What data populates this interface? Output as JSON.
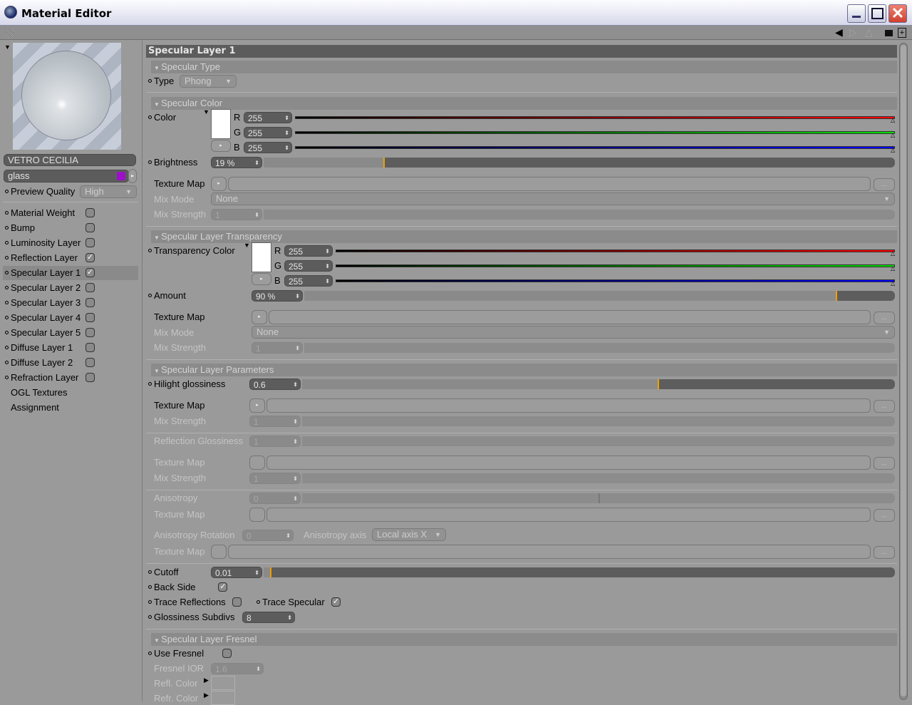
{
  "window": {
    "title": "Material Editor"
  },
  "colors": {
    "accent": "#f0a000",
    "swatch_purple": "#9b10c8",
    "red": "#ff0000",
    "green": "#00dd00",
    "blue": "#0000ff"
  },
  "left": {
    "material_name": "VETRO CECILIA",
    "material_type": "glass",
    "preview_quality_label": "Preview Quality",
    "preview_quality_value": "High",
    "layers": [
      {
        "label": "Material Weight",
        "checked": false
      },
      {
        "label": "Bump",
        "checked": false
      },
      {
        "label": "Luminosity Layer",
        "checked": false
      },
      {
        "label": "Reflection Layer",
        "checked": true
      },
      {
        "label": "Specular Layer 1",
        "checked": true,
        "selected": true
      },
      {
        "label": "Specular Layer 2",
        "checked": false
      },
      {
        "label": "Specular Layer 3",
        "checked": false
      },
      {
        "label": "Specular Layer 4",
        "checked": false
      },
      {
        "label": "Specular Layer 5",
        "checked": false
      },
      {
        "label": "Diffuse Layer 1",
        "checked": false
      },
      {
        "label": "Diffuse Layer 2",
        "checked": false
      },
      {
        "label": "Refraction Layer",
        "checked": false
      },
      {
        "label": "OGL Textures"
      },
      {
        "label": "Assignment"
      }
    ]
  },
  "main": {
    "title": "Specular Layer 1",
    "rows": [
      {
        "kind": "section",
        "label": "Specular Type"
      },
      {
        "kind": "dropdown",
        "label": "Type",
        "value": "Phong",
        "bullet": true
      },
      {
        "kind": "divider"
      },
      {
        "kind": "section",
        "label": "Specular Color"
      },
      {
        "kind": "color",
        "label": "Color",
        "r": "255",
        "g": "255",
        "b": "255",
        "bullet": true
      },
      {
        "kind": "slider",
        "label": "Brightness",
        "value": "19 %",
        "fraction": 0.19,
        "bullet": true
      },
      {
        "kind": "texmap",
        "label": "Texture Map"
      },
      {
        "kind": "mixmode",
        "label": "Mix Mode",
        "value": "None",
        "disabled": true
      },
      {
        "kind": "slider",
        "label": "Mix Strength",
        "value": "1",
        "disabled": true
      },
      {
        "kind": "divider"
      },
      {
        "kind": "section",
        "label": "Specular Layer Transparency"
      },
      {
        "kind": "color",
        "label": "Transparency Color",
        "r": "255",
        "g": "255",
        "b": "255",
        "bullet": true
      },
      {
        "kind": "slider",
        "label": "Amount",
        "value": "90 %",
        "fraction": 0.9,
        "bullet": true
      },
      {
        "kind": "texmap",
        "label": "Texture Map"
      },
      {
        "kind": "mixmode",
        "label": "Mix Mode",
        "value": "None",
        "disabled": true
      },
      {
        "kind": "slider",
        "label": "Mix Strength",
        "value": "1",
        "disabled": true
      },
      {
        "kind": "divider"
      },
      {
        "kind": "section",
        "label": "Specular Layer Parameters"
      },
      {
        "kind": "slider",
        "label": "Hilight glossiness",
        "value": "0.6",
        "fraction": 0.6,
        "bullet": true
      },
      {
        "kind": "texmap",
        "label": "Texture Map"
      },
      {
        "kind": "slider",
        "label": "Mix Strength",
        "value": "1",
        "disabled": true
      },
      {
        "kind": "divider"
      },
      {
        "kind": "slider",
        "label": "Reflection Glossiness",
        "value": "1",
        "disabled": true
      },
      {
        "kind": "texmap",
        "label": "Texture Map",
        "disabled": true
      },
      {
        "kind": "slider",
        "label": "Mix Strength",
        "value": "1",
        "disabled": true
      },
      {
        "kind": "divider"
      },
      {
        "kind": "slider",
        "label": "Anisotropy",
        "value": "0",
        "fraction": 0.5,
        "disabled": true
      },
      {
        "kind": "texmap",
        "label": "Texture Map",
        "disabled": true
      },
      {
        "kind": "aniso",
        "label": "Anisotropy Rotation",
        "value": "0",
        "axis_label": "Anisotropy axis",
        "axis_value": "Local axis X",
        "disabled": true
      },
      {
        "kind": "texmap",
        "label": "Texture Map",
        "disabled": true
      },
      {
        "kind": "divider"
      },
      {
        "kind": "slider",
        "label": "Cutoff",
        "value": "0.01",
        "fraction": 0.01,
        "bullet": true
      },
      {
        "kind": "check",
        "label": "Back Side",
        "checked": true,
        "bullet": true
      },
      {
        "kind": "check2",
        "label": "Trace Reflections",
        "checked": false,
        "label2": "Trace Specular",
        "checked2": true,
        "bullet": true
      },
      {
        "kind": "num",
        "label": "Glossiness Subdivs",
        "value": "8",
        "bullet": true
      },
      {
        "kind": "divider"
      },
      {
        "kind": "section",
        "label": "Specular Layer Fresnel"
      },
      {
        "kind": "check",
        "label": "Use Fresnel",
        "checked": false,
        "bullet": true
      },
      {
        "kind": "num",
        "label": "Fresnel IOR",
        "value": "1.6",
        "disabled": true
      },
      {
        "kind": "swatch",
        "label": "Refl. Color",
        "disabled": true
      },
      {
        "kind": "swatch",
        "label": "Refr. Color",
        "disabled": true
      }
    ]
  }
}
